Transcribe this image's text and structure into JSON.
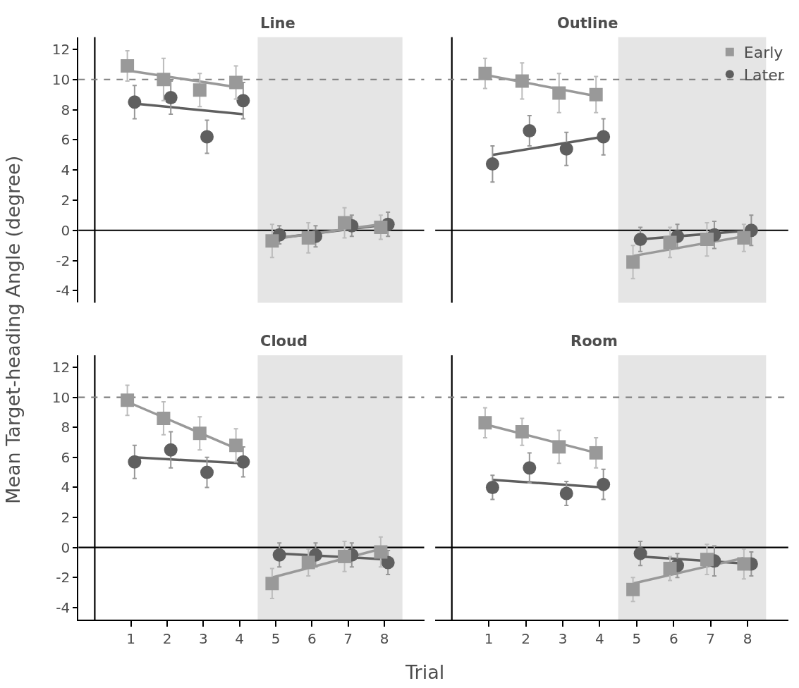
{
  "chart_data": [
    {
      "type": "scatter",
      "title": "Line",
      "ylabel": "Mean Target-heading Angle (degree)",
      "xlim": [
        -0.45,
        9.1
      ],
      "ylim": [
        -4.8,
        12.8
      ],
      "xticks": [
        1,
        2,
        3,
        4,
        5,
        6,
        7,
        8
      ],
      "yticks": [
        -4,
        -2,
        0,
        2,
        4,
        6,
        8,
        10,
        12
      ],
      "tick_labels": "y",
      "grid": false,
      "legend": false,
      "ref_lines": [
        {
          "axis": "x",
          "value": 0,
          "color": "#000000"
        },
        {
          "axis": "y",
          "value": 0,
          "color": "#000000"
        },
        {
          "axis": "y",
          "value": 10,
          "color": "#808080",
          "line_style": "dashed"
        }
      ],
      "bands": [
        {
          "axis": "x",
          "from": 4.5,
          "to": 8.5,
          "color": "#e5e5e5"
        }
      ],
      "series": [
        {
          "type": "scatter",
          "marker": "square",
          "color": "#999999",
          "x": [
            0.9,
            1.9,
            2.9,
            3.9,
            4.9,
            5.9,
            6.9,
            7.9
          ],
          "values": [
            10.9,
            10.0,
            9.3,
            9.8,
            -0.7,
            -0.5,
            0.5,
            0.2
          ],
          "errors": [
            1.0,
            1.4,
            1.1,
            1.1,
            1.1,
            1.0,
            1.0,
            0.8
          ]
        },
        {
          "type": "scatter",
          "marker": "circle",
          "color": "#5f5f5f",
          "x": [
            1.1,
            2.1,
            3.1,
            4.1,
            5.1,
            6.1,
            7.1,
            8.1
          ],
          "values": [
            8.5,
            8.8,
            6.2,
            8.6,
            -0.3,
            -0.4,
            0.3,
            0.4
          ],
          "errors": [
            1.1,
            1.1,
            1.1,
            1.2,
            0.6,
            0.7,
            0.7,
            0.8
          ]
        },
        {
          "type": "line",
          "color": "#999999",
          "x": [
            0.9,
            3.9
          ],
          "values": [
            10.6,
            9.5
          ]
        },
        {
          "type": "line",
          "color": "#5f5f5f",
          "x": [
            1.1,
            4.1
          ],
          "values": [
            8.4,
            7.7
          ]
        },
        {
          "type": "line",
          "color": "#999999",
          "x": [
            4.9,
            7.9
          ],
          "values": [
            -0.6,
            0.4
          ]
        },
        {
          "type": "line",
          "color": "#5f5f5f",
          "x": [
            5.1,
            8.1
          ],
          "values": [
            -0.5,
            0.4
          ]
        }
      ]
    },
    {
      "type": "scatter",
      "title": "Outline",
      "xlim": [
        -0.45,
        9.1
      ],
      "ylim": [
        -4.8,
        12.8
      ],
      "xticks": [
        1,
        2,
        3,
        4,
        5,
        6,
        7,
        8
      ],
      "yticks": [
        -4,
        -2,
        0,
        2,
        4,
        6,
        8,
        10,
        12
      ],
      "tick_labels": false,
      "grid": false,
      "legend": "top right",
      "ref_lines": [
        {
          "axis": "x",
          "value": 0,
          "color": "#000000"
        },
        {
          "axis": "y",
          "value": 0,
          "color": "#000000"
        },
        {
          "axis": "y",
          "value": 10,
          "color": "#808080",
          "line_style": "dashed"
        }
      ],
      "bands": [
        {
          "axis": "x",
          "from": 4.5,
          "to": 8.5,
          "color": "#e5e5e5"
        }
      ],
      "series": [
        {
          "type": "scatter",
          "name": "Early",
          "marker": "square",
          "color": "#999999",
          "x": [
            0.9,
            1.9,
            2.9,
            3.9,
            4.9,
            5.9,
            6.9,
            7.9
          ],
          "values": [
            10.4,
            9.9,
            9.1,
            9.0,
            -2.1,
            -0.8,
            -0.6,
            -0.5
          ],
          "errors": [
            1.0,
            1.2,
            1.3,
            1.2,
            1.1,
            1.0,
            1.1,
            0.9
          ]
        },
        {
          "type": "scatter",
          "name": "Later",
          "marker": "circle",
          "color": "#5f5f5f",
          "x": [
            1.1,
            2.1,
            3.1,
            4.1,
            5.1,
            6.1,
            7.1,
            8.1
          ],
          "values": [
            4.4,
            6.6,
            5.4,
            6.2,
            -0.6,
            -0.4,
            -0.3,
            0.0
          ],
          "errors": [
            1.2,
            1.0,
            1.1,
            1.2,
            0.8,
            0.8,
            0.9,
            1.0
          ]
        },
        {
          "type": "line",
          "color": "#999999",
          "x": [
            0.9,
            3.9
          ],
          "values": [
            10.3,
            8.9
          ]
        },
        {
          "type": "line",
          "color": "#5f5f5f",
          "x": [
            1.1,
            4.1
          ],
          "values": [
            5.0,
            6.2
          ]
        },
        {
          "type": "line",
          "color": "#999999",
          "x": [
            4.9,
            7.9
          ],
          "values": [
            -1.7,
            -0.4
          ]
        },
        {
          "type": "line",
          "color": "#5f5f5f",
          "x": [
            5.1,
            8.1
          ],
          "values": [
            -0.6,
            0.0
          ]
        }
      ]
    },
    {
      "type": "scatter",
      "title": "Cloud",
      "xlabel": "Trial",
      "xlim": [
        -0.45,
        9.1
      ],
      "ylim": [
        -4.8,
        12.8
      ],
      "xticks": [
        1,
        2,
        3,
        4,
        5,
        6,
        7,
        8
      ],
      "yticks": [
        -4,
        -2,
        0,
        2,
        4,
        6,
        8,
        10,
        12
      ],
      "grid": false,
      "legend": false,
      "ref_lines": [
        {
          "axis": "x",
          "value": 0,
          "color": "#000000"
        },
        {
          "axis": "y",
          "value": 0,
          "color": "#000000"
        },
        {
          "axis": "y",
          "value": 10,
          "color": "#808080",
          "line_style": "dashed"
        }
      ],
      "bands": [
        {
          "axis": "x",
          "from": 4.5,
          "to": 8.5,
          "color": "#e5e5e5"
        }
      ],
      "series": [
        {
          "type": "scatter",
          "marker": "square",
          "color": "#999999",
          "x": [
            0.9,
            1.9,
            2.9,
            3.9,
            4.9,
            5.9,
            6.9,
            7.9
          ],
          "values": [
            9.8,
            8.6,
            7.6,
            6.8,
            -2.4,
            -1.0,
            -0.6,
            -0.3
          ],
          "errors": [
            1.0,
            1.1,
            1.1,
            1.1,
            1.0,
            0.9,
            1.0,
            1.0
          ]
        },
        {
          "type": "scatter",
          "marker": "circle",
          "color": "#5f5f5f",
          "x": [
            1.1,
            2.1,
            3.1,
            4.1,
            5.1,
            6.1,
            7.1,
            8.1
          ],
          "values": [
            5.7,
            6.5,
            5.0,
            5.7,
            -0.5,
            -0.5,
            -0.5,
            -1.0
          ],
          "errors": [
            1.1,
            1.2,
            1.0,
            1.0,
            0.8,
            0.8,
            0.8,
            0.8
          ]
        },
        {
          "type": "line",
          "color": "#999999",
          "x": [
            0.9,
            3.9
          ],
          "values": [
            9.7,
            6.6
          ]
        },
        {
          "type": "line",
          "color": "#5f5f5f",
          "x": [
            1.1,
            4.1
          ],
          "values": [
            6.0,
            5.6
          ]
        },
        {
          "type": "line",
          "color": "#999999",
          "x": [
            4.9,
            7.9
          ],
          "values": [
            -2.0,
            -0.1
          ]
        },
        {
          "type": "line",
          "color": "#5f5f5f",
          "x": [
            5.1,
            8.1
          ],
          "values": [
            -0.4,
            -0.8
          ]
        }
      ]
    },
    {
      "type": "scatter",
      "title": "Room",
      "xlim": [
        -0.45,
        9.1
      ],
      "ylim": [
        -4.8,
        12.8
      ],
      "xticks": [
        1,
        2,
        3,
        4,
        5,
        6,
        7,
        8
      ],
      "yticks": [
        -4,
        -2,
        0,
        2,
        4,
        6,
        8,
        10,
        12
      ],
      "tick_labels": "x",
      "grid": false,
      "legend": false,
      "ref_lines": [
        {
          "axis": "x",
          "value": 0,
          "color": "#000000"
        },
        {
          "axis": "y",
          "value": 0,
          "color": "#000000"
        },
        {
          "axis": "y",
          "value": 10,
          "color": "#808080",
          "line_style": "dashed"
        }
      ],
      "bands": [
        {
          "axis": "x",
          "from": 4.5,
          "to": 8.5,
          "color": "#e5e5e5"
        }
      ],
      "series": [
        {
          "type": "scatter",
          "marker": "square",
          "color": "#999999",
          "x": [
            0.9,
            1.9,
            2.9,
            3.9,
            4.9,
            5.9,
            6.9,
            7.9
          ],
          "values": [
            8.3,
            7.7,
            6.7,
            6.3,
            -2.8,
            -1.4,
            -0.8,
            -1.1
          ],
          "errors": [
            1.0,
            0.9,
            1.1,
            1.0,
            0.8,
            0.8,
            1.0,
            1.0
          ]
        },
        {
          "type": "scatter",
          "marker": "circle",
          "color": "#5f5f5f",
          "x": [
            1.1,
            2.1,
            3.1,
            4.1,
            5.1,
            6.1,
            7.1,
            8.1
          ],
          "values": [
            4.0,
            5.3,
            3.6,
            4.2,
            -0.4,
            -1.2,
            -0.9,
            -1.1
          ],
          "errors": [
            0.8,
            1.0,
            0.8,
            1.0,
            0.8,
            0.8,
            1.0,
            0.8
          ]
        },
        {
          "type": "line",
          "color": "#999999",
          "x": [
            0.9,
            3.9
          ],
          "values": [
            8.2,
            6.3
          ]
        },
        {
          "type": "line",
          "color": "#5f5f5f",
          "x": [
            1.1,
            4.1
          ],
          "values": [
            4.5,
            4.0
          ]
        },
        {
          "type": "line",
          "color": "#999999",
          "x": [
            4.9,
            7.9
          ],
          "values": [
            -2.4,
            -0.7
          ]
        },
        {
          "type": "line",
          "color": "#5f5f5f",
          "x": [
            5.1,
            8.1
          ],
          "values": [
            -0.6,
            -1.1
          ]
        }
      ]
    }
  ]
}
